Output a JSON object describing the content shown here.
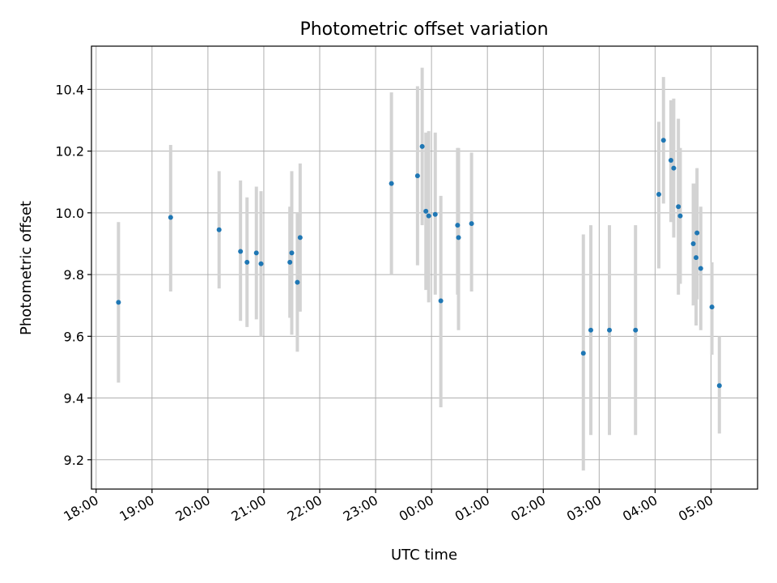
{
  "chart_data": {
    "type": "scatter",
    "title": "Photometric offset variation",
    "xlabel": "UTC time",
    "ylabel": "Photometric offset",
    "grid": true,
    "x_ticks": [
      "18:00",
      "19:00",
      "20:00",
      "21:00",
      "22:00",
      "23:00",
      "00:00",
      "01:00",
      "02:00",
      "03:00",
      "04:00",
      "05:00"
    ],
    "x_range": [
      "17:55",
      "05:50"
    ],
    "y_ticks": [
      9.2,
      9.4,
      9.6,
      9.8,
      10.0,
      10.2,
      10.4
    ],
    "ylim": [
      9.105,
      10.54
    ],
    "colors": {
      "point": "#1f77b4",
      "errorbar": "#d3d3d3",
      "grid": "#b0b0b0"
    },
    "points": [
      {
        "x": "18:24",
        "y": 9.71,
        "err_low": 9.45,
        "err_high": 9.97
      },
      {
        "x": "19:20",
        "y": 9.985,
        "err_low": 9.745,
        "err_high": 10.22
      },
      {
        "x": "20:12",
        "y": 9.945,
        "err_low": 9.755,
        "err_high": 10.135
      },
      {
        "x": "20:35",
        "y": 9.875,
        "err_low": 9.65,
        "err_high": 10.105
      },
      {
        "x": "20:42",
        "y": 9.84,
        "err_low": 9.63,
        "err_high": 10.05
      },
      {
        "x": "20:52",
        "y": 9.87,
        "err_low": 9.655,
        "err_high": 10.085
      },
      {
        "x": "20:57",
        "y": 9.835,
        "err_low": 9.6,
        "err_high": 10.07
      },
      {
        "x": "21:28",
        "y": 9.84,
        "err_low": 9.66,
        "err_high": 10.02
      },
      {
        "x": "21:30",
        "y": 9.87,
        "err_low": 9.605,
        "err_high": 10.135
      },
      {
        "x": "21:36",
        "y": 9.775,
        "err_low": 9.55,
        "err_high": 10.0
      },
      {
        "x": "21:39",
        "y": 9.92,
        "err_low": 9.68,
        "err_high": 10.16
      },
      {
        "x": "23:17",
        "y": 10.095,
        "err_low": 9.8,
        "err_high": 10.39
      },
      {
        "x": "23:45",
        "y": 10.12,
        "err_low": 9.83,
        "err_high": 10.41
      },
      {
        "x": "23:50",
        "y": 10.215,
        "err_low": 9.96,
        "err_high": 10.47
      },
      {
        "x": "23:54",
        "y": 10.005,
        "err_low": 9.75,
        "err_high": 10.26
      },
      {
        "x": "23:57",
        "y": 9.99,
        "err_low": 9.71,
        "err_high": 10.265
      },
      {
        "x": "00:04",
        "y": 9.995,
        "err_low": 9.735,
        "err_high": 10.26
      },
      {
        "x": "00:10",
        "y": 9.715,
        "err_low": 9.37,
        "err_high": 10.055
      },
      {
        "x": "00:28",
        "y": 9.96,
        "err_low": 9.735,
        "err_high": 10.21
      },
      {
        "x": "00:29",
        "y": 9.92,
        "err_low": 9.62,
        "err_high": 10.21
      },
      {
        "x": "00:43",
        "y": 9.965,
        "err_low": 9.745,
        "err_high": 10.195
      },
      {
        "x": "02:43",
        "y": 9.545,
        "err_low": 9.165,
        "err_high": 9.93
      },
      {
        "x": "02:51",
        "y": 9.62,
        "err_low": 9.28,
        "err_high": 9.96
      },
      {
        "x": "03:11",
        "y": 9.62,
        "err_low": 9.28,
        "err_high": 9.96
      },
      {
        "x": "03:39",
        "y": 9.62,
        "err_low": 9.28,
        "err_high": 9.96
      },
      {
        "x": "04:04",
        "y": 10.06,
        "err_low": 9.82,
        "err_high": 10.295
      },
      {
        "x": "04:09",
        "y": 10.235,
        "err_low": 10.03,
        "err_high": 10.44
      },
      {
        "x": "04:17",
        "y": 10.17,
        "err_low": 9.97,
        "err_high": 10.365
      },
      {
        "x": "04:20",
        "y": 10.145,
        "err_low": 9.92,
        "err_high": 10.37
      },
      {
        "x": "04:25",
        "y": 10.02,
        "err_low": 9.735,
        "err_high": 10.305
      },
      {
        "x": "04:27",
        "y": 9.99,
        "err_low": 9.77,
        "err_high": 10.21
      },
      {
        "x": "04:41",
        "y": 9.9,
        "err_low": 9.7,
        "err_high": 10.095
      },
      {
        "x": "04:44",
        "y": 9.855,
        "err_low": 9.635,
        "err_high": 10.095
      },
      {
        "x": "04:45",
        "y": 9.935,
        "err_low": 9.72,
        "err_high": 10.145
      },
      {
        "x": "04:49",
        "y": 9.82,
        "err_low": 9.62,
        "err_high": 10.02
      },
      {
        "x": "05:01",
        "y": 9.695,
        "err_low": 9.54,
        "err_high": 9.84
      },
      {
        "x": "05:09",
        "y": 9.44,
        "err_low": 9.285,
        "err_high": 9.6
      }
    ]
  }
}
